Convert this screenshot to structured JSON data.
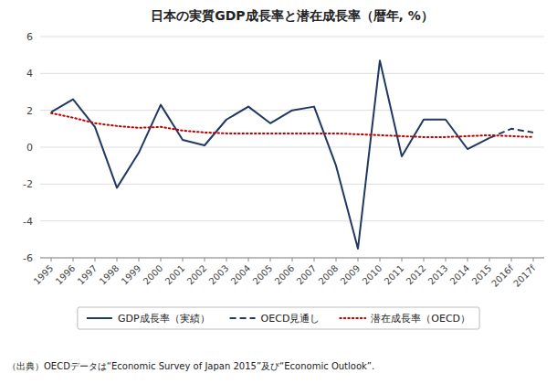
{
  "chart_data": {
    "type": "line",
    "title": "日本の実質GDP成長率と潜在成長率（暦年, %）",
    "categories": [
      "1995",
      "1996",
      "1997",
      "1998",
      "1999",
      "2000",
      "2001",
      "2002",
      "2003",
      "2004",
      "2005",
      "2006",
      "2007",
      "2008",
      "2009",
      "2010",
      "2011",
      "2012",
      "2013",
      "2014",
      "2015",
      "2016f",
      "2017f"
    ],
    "series": [
      {
        "name": "GDP成長率（実績）",
        "color": "#1F3864",
        "line_style": "solid",
        "values": [
          1.9,
          2.6,
          1.1,
          -2.2,
          -0.3,
          2.3,
          0.4,
          0.1,
          1.5,
          2.2,
          1.3,
          2.0,
          2.2,
          -1.0,
          -5.5,
          4.7,
          -0.5,
          1.5,
          1.5,
          -0.1,
          0.5,
          null,
          null
        ]
      },
      {
        "name": "OECD見通し",
        "color": "#1F3864",
        "line_style": "dashed",
        "values": [
          null,
          null,
          null,
          null,
          null,
          null,
          null,
          null,
          null,
          null,
          null,
          null,
          null,
          null,
          null,
          null,
          null,
          null,
          null,
          null,
          0.5,
          1.0,
          0.8
        ]
      },
      {
        "name": "潜在成長率（OECD）",
        "color": "#C00000",
        "line_style": "dotted",
        "values": [
          1.85,
          1.6,
          1.3,
          1.15,
          1.05,
          1.1,
          0.9,
          0.8,
          0.75,
          0.75,
          0.75,
          0.75,
          0.75,
          0.75,
          0.7,
          0.65,
          0.6,
          0.55,
          0.55,
          0.6,
          0.65,
          0.6,
          0.55
        ]
      }
    ],
    "ylim": [
      -6,
      6
    ],
    "yticks": [
      -6,
      -4,
      -2,
      0,
      2,
      4,
      6
    ],
    "grid": true,
    "legend": "bottom",
    "annotations": [
      "（出典）OECDデータは“Economic Survey of Japan 2015”及び“Economic Outlook”."
    ]
  }
}
